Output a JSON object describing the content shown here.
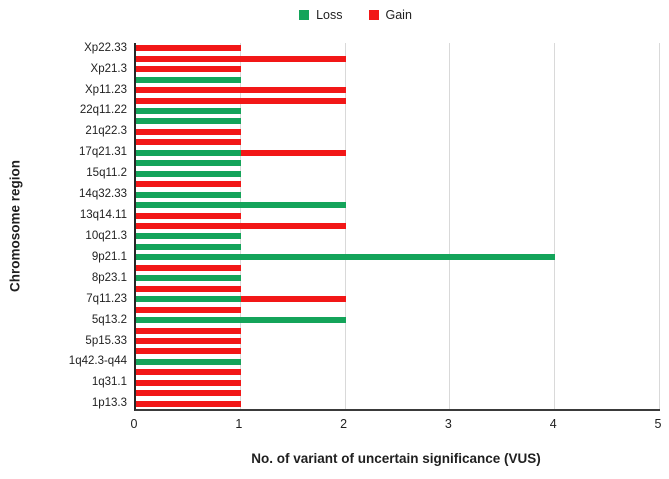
{
  "legend": {
    "items": [
      {
        "name": "loss",
        "label": "Loss",
        "color": "#14a45a"
      },
      {
        "name": "gain",
        "label": "Gain",
        "color": "#f21717"
      }
    ]
  },
  "chart_data": {
    "type": "bar",
    "orientation": "horizontal",
    "stacked": true,
    "title": "",
    "xlabel": "No. of variant of uncertain significance (VUS)",
    "ylabel": "Chromosome region",
    "xlim": [
      0,
      5
    ],
    "xticks": [
      0,
      1,
      2,
      3,
      4,
      5
    ],
    "grid": true,
    "legend_position": "top-center",
    "series_names": [
      "Loss",
      "Gain"
    ],
    "series_colors": {
      "Loss": "#14a45a",
      "Gain": "#f21717"
    },
    "rows": [
      {
        "label": "Xp22.33",
        "loss": 0,
        "gain": 1
      },
      {
        "label": "",
        "loss": 0,
        "gain": 2
      },
      {
        "label": "Xp21.3",
        "loss": 0,
        "gain": 1
      },
      {
        "label": "",
        "loss": 1,
        "gain": 0
      },
      {
        "label": "Xp11.23",
        "loss": 0,
        "gain": 2
      },
      {
        "label": "",
        "loss": 0,
        "gain": 2
      },
      {
        "label": "22q11.22",
        "loss": 1,
        "gain": 0
      },
      {
        "label": "",
        "loss": 1,
        "gain": 0
      },
      {
        "label": "21q22.3",
        "loss": 0,
        "gain": 1
      },
      {
        "label": "",
        "loss": 0,
        "gain": 1
      },
      {
        "label": "17q21.31",
        "loss": 1,
        "gain": 1
      },
      {
        "label": "",
        "loss": 1,
        "gain": 0
      },
      {
        "label": "15q11.2",
        "loss": 1,
        "gain": 0
      },
      {
        "label": "",
        "loss": 0,
        "gain": 1
      },
      {
        "label": "14q32.33",
        "loss": 1,
        "gain": 0
      },
      {
        "label": "",
        "loss": 2,
        "gain": 0
      },
      {
        "label": "13q14.11",
        "loss": 0,
        "gain": 1
      },
      {
        "label": "",
        "loss": 0,
        "gain": 2
      },
      {
        "label": "10q21.3",
        "loss": 1,
        "gain": 0
      },
      {
        "label": "",
        "loss": 1,
        "gain": 0
      },
      {
        "label": "9p21.1",
        "loss": 4,
        "gain": 0
      },
      {
        "label": "",
        "loss": 0,
        "gain": 1
      },
      {
        "label": "8p23.1",
        "loss": 1,
        "gain": 0
      },
      {
        "label": "",
        "loss": 0,
        "gain": 1
      },
      {
        "label": "7q11.23",
        "loss": 1,
        "gain": 1
      },
      {
        "label": "",
        "loss": 0,
        "gain": 1
      },
      {
        "label": "5q13.2",
        "loss": 2,
        "gain": 0
      },
      {
        "label": "",
        "loss": 0,
        "gain": 1
      },
      {
        "label": "5p15.33",
        "loss": 0,
        "gain": 1
      },
      {
        "label": "",
        "loss": 0,
        "gain": 1
      },
      {
        "label": "1q42.3-q44",
        "loss": 1,
        "gain": 0
      },
      {
        "label": "",
        "loss": 0,
        "gain": 1
      },
      {
        "label": "1q31.1",
        "loss": 0,
        "gain": 1
      },
      {
        "label": "",
        "loss": 0,
        "gain": 1
      },
      {
        "label": "1p13.3",
        "loss": 0,
        "gain": 1
      }
    ]
  }
}
